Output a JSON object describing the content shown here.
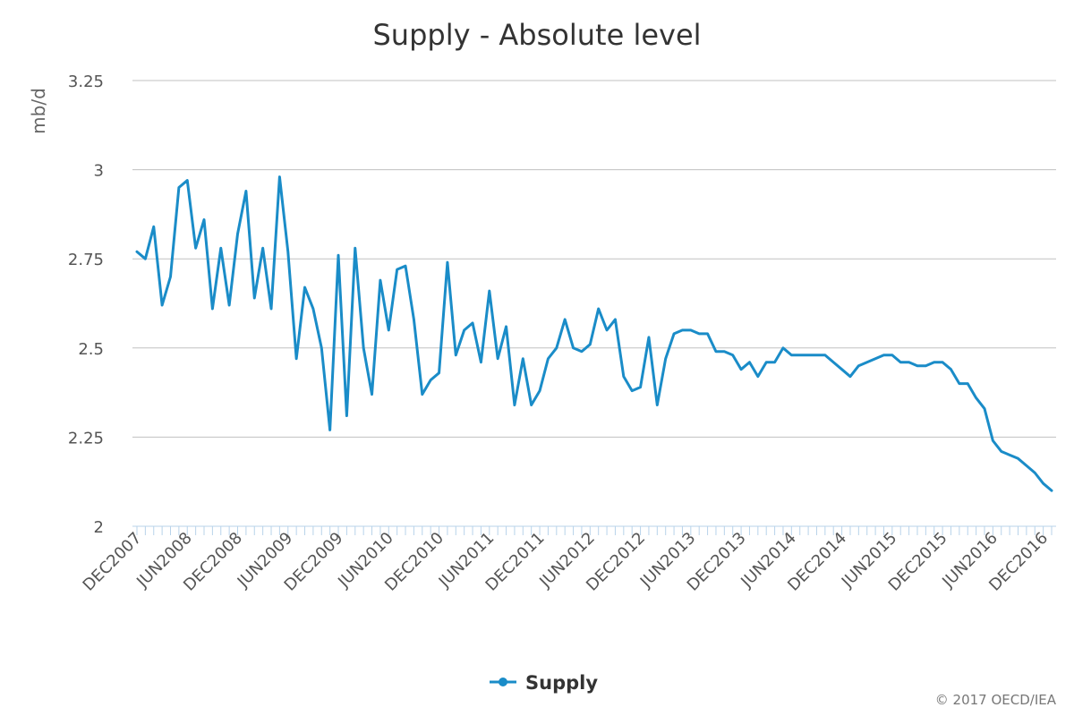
{
  "chart_data": {
    "type": "line",
    "title": "Supply - Absolute level",
    "ylabel": "mb/d",
    "xlabel": "",
    "ylim": [
      2,
      3.25
    ],
    "yticks": [
      "2",
      "2.25",
      "2.5",
      "2.75",
      "3",
      "3.25"
    ],
    "ytick_values": [
      2,
      2.25,
      2.5,
      2.75,
      3,
      3.25
    ],
    "grid": true,
    "legend_position": "bottom",
    "x_start": "DEC2007",
    "x_end": "DEC2016",
    "xtick_labels": [
      "DEC2007",
      "JUN2008",
      "DEC2008",
      "JUN2009",
      "DEC2009",
      "JUN2010",
      "DEC2010",
      "JUN2011",
      "DEC2011",
      "JUN2012",
      "DEC2012",
      "JUN2013",
      "DEC2013",
      "JUN2014",
      "DEC2014",
      "JUN2015",
      "DEC2015",
      "JUN2016",
      "DEC2016"
    ],
    "series": [
      {
        "name": "Supply",
        "color": "#1a8cc8",
        "values": [
          2.77,
          2.75,
          2.84,
          2.62,
          2.7,
          2.95,
          2.97,
          2.78,
          2.86,
          2.61,
          2.78,
          2.62,
          2.82,
          2.94,
          2.64,
          2.78,
          2.61,
          2.98,
          2.77,
          2.47,
          2.67,
          2.61,
          2.5,
          2.27,
          2.76,
          2.31,
          2.78,
          2.5,
          2.37,
          2.69,
          2.55,
          2.72,
          2.73,
          2.58,
          2.37,
          2.41,
          2.43,
          2.74,
          2.48,
          2.55,
          2.57,
          2.46,
          2.66,
          2.47,
          2.56,
          2.34,
          2.47,
          2.34,
          2.38,
          2.47,
          2.5,
          2.58,
          2.5,
          2.49,
          2.51,
          2.61,
          2.55,
          2.58,
          2.42,
          2.38,
          2.39,
          2.53,
          2.34,
          2.47,
          2.54,
          2.55,
          2.55,
          2.54,
          2.54,
          2.49,
          2.49,
          2.48,
          2.44,
          2.46,
          2.42,
          2.46,
          2.46,
          2.5,
          2.48,
          2.48,
          2.48,
          2.48,
          2.48,
          2.46,
          2.44,
          2.42,
          2.45,
          2.46,
          2.47,
          2.48,
          2.48,
          2.46,
          2.46,
          2.45,
          2.45,
          2.46,
          2.46,
          2.44,
          2.4,
          2.4,
          2.36,
          2.33,
          2.24,
          2.21,
          2.2,
          2.19,
          2.17,
          2.15,
          2.12,
          2.1
        ]
      }
    ]
  },
  "credit": "© 2017 OECD/IEA"
}
